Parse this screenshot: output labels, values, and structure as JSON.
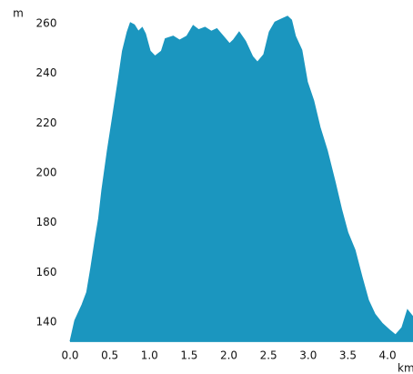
{
  "chart_data": {
    "type": "area",
    "y_label": "m",
    "x_label": "km",
    "color": "#1b96bf",
    "xlim": [
      0,
      4.32
    ],
    "ylim": [
      132,
      265
    ],
    "xticks": [
      {
        "value": 0,
        "label": "0.0"
      },
      0.5,
      {
        "value": 1,
        "label": "1.0"
      },
      1.5,
      {
        "value": 2,
        "label": "2.0"
      },
      2.5,
      {
        "value": 3,
        "label": "3.0"
      },
      3.5,
      {
        "value": 4,
        "label": "4.0"
      }
    ],
    "yticks": [
      140,
      160,
      180,
      200,
      220,
      240,
      260
    ],
    "x": [
      0,
      0.06,
      0.15,
      0.21,
      0.26,
      0.32,
      0.36,
      0.4,
      0.47,
      0.55,
      0.61,
      0.66,
      0.72,
      0.76,
      0.81,
      0.86,
      0.91,
      0.95,
      1.01,
      1.07,
      1.15,
      1.2,
      1.3,
      1.38,
      1.47,
      1.55,
      1.62,
      1.7,
      1.78,
      1.85,
      1.93,
      2.01,
      2.06,
      2.13,
      2.21,
      2.3,
      2.36,
      2.44,
      2.51,
      2.58,
      2.67,
      2.74,
      2.79,
      2.84,
      2.92,
      2.99,
      3.07,
      3.15,
      3.24,
      3.34,
      3.42,
      3.5,
      3.59,
      3.68,
      3.76,
      3.84,
      3.93,
      4.02,
      4.1,
      4.18,
      4.25,
      4.32
    ],
    "values": [
      132.3,
      140.7,
      147,
      152,
      161.6,
      174,
      181.7,
      193,
      209,
      225.6,
      238,
      249,
      256.7,
      260.4,
      259.6,
      257,
      258.5,
      256,
      249,
      247,
      249,
      254,
      255,
      253.4,
      255,
      259.3,
      257.6,
      258.6,
      257,
      258,
      255,
      252,
      253.6,
      256.7,
      253,
      246.8,
      244.6,
      247.6,
      256.7,
      260.7,
      262,
      263,
      261.5,
      255,
      249.4,
      236.6,
      229,
      218.3,
      209,
      196.3,
      185.4,
      176,
      169,
      158,
      148.8,
      143.3,
      139.6,
      137,
      134.9,
      137.8,
      145,
      142.2
    ]
  }
}
